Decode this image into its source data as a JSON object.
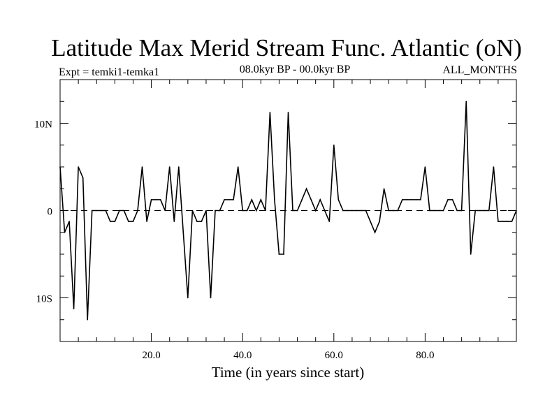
{
  "chart_data": {
    "type": "line",
    "title": "Latitude Max Merid Stream Func. Atlantic (oN)",
    "subtitle_left": "Expt = temki1-temka1",
    "subtitle_center": "08.0kyr BP - 00.0kyr BP",
    "subtitle_right": "ALL_MONTHS",
    "xlabel": "Time (in years since start)",
    "ylabel": "",
    "xlim": [
      0,
      100
    ],
    "ylim": [
      -15,
      15
    ],
    "x_ticks": [
      20,
      40,
      60,
      80
    ],
    "x_tick_labels": [
      "20.0",
      "40.0",
      "60.0",
      "80.0"
    ],
    "y_ticks": [
      10,
      0,
      -10
    ],
    "y_tick_labels": [
      "10N",
      "0",
      "10S"
    ],
    "zero_line": true,
    "grid": false,
    "series": [
      {
        "name": "Latitude",
        "x": [
          0,
          1,
          2,
          3,
          4,
          5,
          6,
          7,
          8,
          9,
          10,
          11,
          12,
          13,
          14,
          15,
          16,
          17,
          18,
          19,
          20,
          21,
          22,
          23,
          24,
          25,
          26,
          27,
          28,
          29,
          30,
          31,
          32,
          33,
          34,
          35,
          36,
          37,
          38,
          39,
          40,
          41,
          42,
          43,
          44,
          45,
          46,
          47,
          48,
          49,
          50,
          51,
          52,
          53,
          54,
          55,
          56,
          57,
          58,
          59,
          60,
          61,
          62,
          63,
          64,
          65,
          66,
          67,
          68,
          69,
          70,
          71,
          72,
          73,
          74,
          75,
          76,
          77,
          78,
          79,
          80,
          81,
          82,
          83,
          84,
          85,
          86,
          87,
          88,
          89,
          90,
          91,
          92,
          93,
          94,
          95,
          96,
          97,
          98,
          99,
          100
        ],
        "values": [
          5,
          -2.5,
          -1.25,
          -11.25,
          5,
          3.75,
          -12.5,
          0,
          0,
          0,
          0,
          -1.25,
          -1.25,
          0,
          0,
          -1.25,
          -1.25,
          0,
          5,
          -1.25,
          1.25,
          1.25,
          1.25,
          0,
          5,
          -1.25,
          5,
          -2.5,
          -10,
          0,
          -1.25,
          -1.25,
          0,
          -10,
          0,
          0,
          1.25,
          1.25,
          1.25,
          5,
          0,
          0,
          1.25,
          0,
          1.25,
          0,
          11.25,
          1.25,
          -5,
          -5,
          11.25,
          0,
          0,
          1.25,
          2.5,
          1.25,
          0,
          1.25,
          0,
          -1.25,
          7.5,
          1.25,
          0,
          0,
          0,
          0,
          0,
          0,
          -1.25,
          -2.5,
          -1.25,
          2.5,
          0,
          0,
          0,
          1.25,
          1.25,
          1.25,
          1.25,
          1.25,
          5,
          0,
          0,
          0,
          0,
          1.25,
          1.25,
          0,
          0,
          12.5,
          -5,
          0,
          0,
          0,
          0,
          5,
          -1.25,
          -1.25,
          -1.25,
          -1.25,
          0
        ]
      }
    ]
  }
}
